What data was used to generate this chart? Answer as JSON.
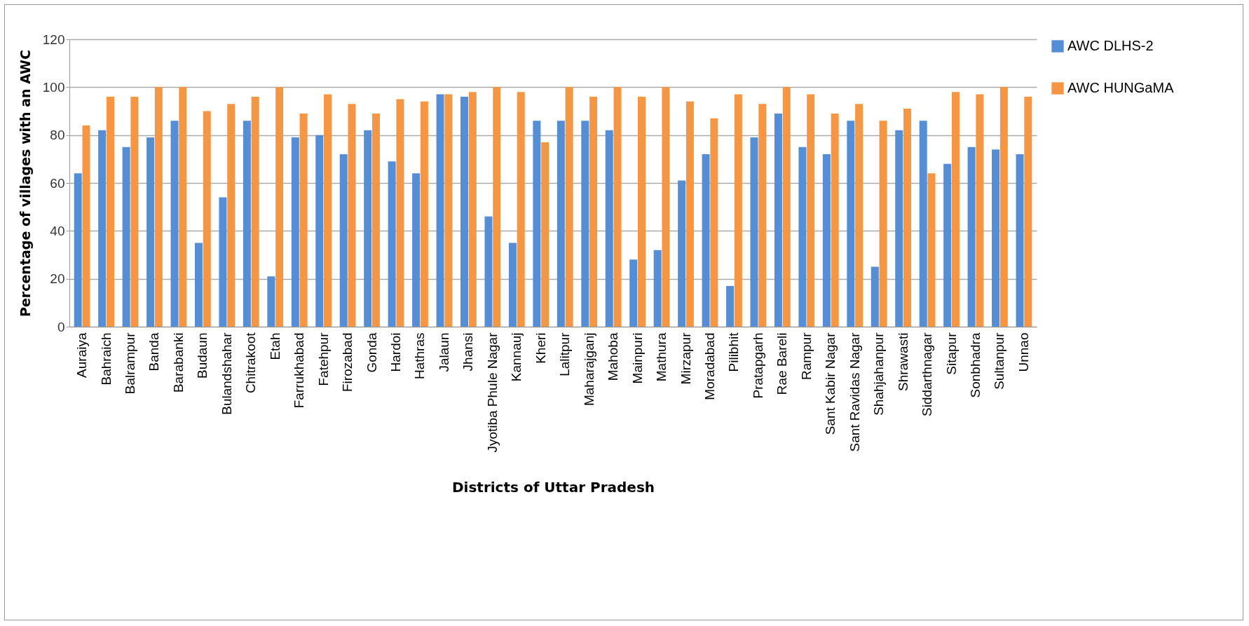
{
  "chart_data": {
    "type": "bar",
    "xlabel": "Districts of Uttar Pradesh",
    "ylabel": "Percentage of villages with an AWC",
    "categories": [
      "Auraiya",
      "Bahraich",
      "Balrampur",
      "Banda",
      "Barabanki",
      "Budaun",
      "Bulandshahar",
      "Chitrakoot",
      "Etah",
      "Farrukhabad",
      "Fatehpur",
      "Firozabad",
      "Gonda",
      "Hardoi",
      "Hathras",
      "Jalaun",
      "Jhansi",
      "Jyotiba Phule Nagar",
      "Kannauj",
      "Kheri",
      "Lalitpur",
      "Maharajganj",
      "Mahoba",
      "Mainpuri",
      "Mathura",
      "Mirzapur",
      "Moradabad",
      "Pilibhit",
      "Pratapgarh",
      "Rae Bareli",
      "Rampur",
      "Sant Kabir Nagar",
      "Sant Ravidas Nagar",
      "Shahjahanpur",
      "Shrawasti",
      "Siddarthnagar",
      "Sitapur",
      "Sonbhadra",
      "Sultanpur",
      "Unnao"
    ],
    "series": [
      {
        "name": "AWC DLHS-2",
        "color": "#558ed5",
        "values": [
          64,
          82,
          75,
          79,
          86,
          35,
          54,
          86,
          21,
          79,
          80,
          72,
          82,
          69,
          64,
          97,
          96,
          46,
          35,
          86,
          86,
          86,
          82,
          28,
          32,
          61,
          72,
          17,
          79,
          89,
          75,
          72,
          86,
          25,
          82,
          86,
          68,
          75,
          74,
          72
        ]
      },
      {
        "name": "AWC HUNGaMA",
        "color": "#f59645",
        "values": [
          84,
          96,
          96,
          100,
          100,
          90,
          93,
          96,
          100,
          89,
          97,
          93,
          89,
          95,
          94,
          97,
          98,
          100,
          98,
          77,
          100,
          96,
          100,
          96,
          100,
          94,
          87,
          97,
          93,
          100,
          97,
          89,
          93,
          86,
          91,
          64,
          98,
          97,
          100,
          96
        ]
      }
    ],
    "ylim": [
      0,
      120
    ],
    "yticks": [
      0,
      20,
      40,
      60,
      80,
      100,
      120
    ],
    "grid": "y",
    "legend": "right"
  }
}
